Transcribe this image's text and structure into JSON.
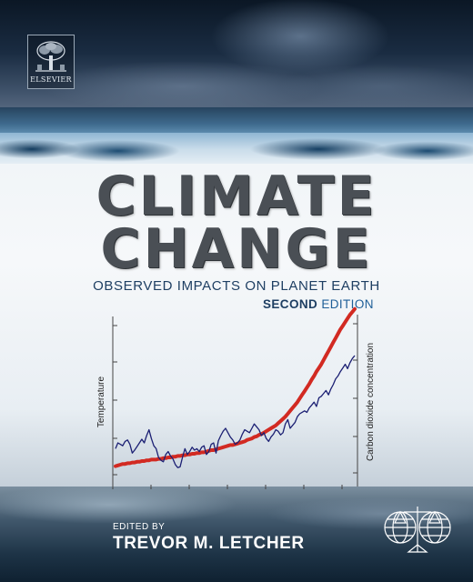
{
  "publisher": {
    "name": "ELSEVIER"
  },
  "cover": {
    "title_line1": "CLIMATE",
    "title_line2": "CHANGE",
    "subtitle": "OBSERVED IMPACTS ON PLANET EARTH",
    "edition_strong": "SECOND",
    "edition_rest": " EDITION"
  },
  "editor": {
    "prefix": "EDITED BY",
    "name": "TREVOR M. LETCHER"
  },
  "chart_data": {
    "type": "line",
    "ylabel_left": "Temperature",
    "ylabel_right": "Carbon dioxide concentration",
    "x": [
      0,
      1,
      2,
      3,
      4,
      5,
      6,
      7,
      8,
      9,
      10,
      11,
      12,
      13,
      14,
      15,
      16,
      17,
      18,
      19,
      20,
      21,
      22,
      23,
      24,
      25,
      26,
      27,
      28,
      29,
      30,
      31,
      32,
      33,
      34,
      35,
      36,
      37,
      38,
      39,
      40,
      41,
      42,
      43,
      44,
      45,
      46,
      47,
      48,
      49,
      50,
      51,
      52,
      53,
      54,
      55,
      56,
      57,
      58,
      59,
      60,
      61,
      62,
      63,
      64,
      65,
      66,
      67,
      68,
      69,
      70,
      71,
      72,
      73,
      74,
      75,
      76,
      77,
      78,
      79,
      80,
      81,
      82,
      83,
      84,
      85,
      86,
      87,
      88,
      89,
      90,
      91,
      92,
      93,
      94,
      95,
      96,
      97,
      98,
      99,
      100
    ],
    "series": [
      {
        "color": "#1b1f73",
        "values": [
          52,
          60,
          58,
          56,
          62,
          64,
          58,
          46,
          50,
          55,
          60,
          65,
          60,
          70,
          78,
          66,
          56,
          52,
          40,
          36,
          34,
          44,
          48,
          42,
          38,
          30,
          26,
          27,
          40,
          52,
          44,
          48,
          54,
          50,
          52,
          48,
          54,
          56,
          44,
          48,
          58,
          60,
          46,
          63,
          70,
          76,
          80,
          74,
          68,
          64,
          58,
          60,
          64,
          72,
          78,
          76,
          74,
          80,
          86,
          82,
          78,
          70,
          74,
          66,
          62,
          68,
          72,
          78,
          76,
          71,
          74,
          86,
          92,
          80,
          84,
          88,
          96,
          100,
          102,
          104,
          102,
          108,
          112,
          116,
          110,
          122,
          124,
          128,
          132,
          126,
          134,
          140,
          148,
          152,
          158,
          163,
          168,
          162,
          170,
          176,
          180
        ]
      },
      {
        "color": "#d22a22",
        "values": [
          28,
          29,
          30,
          31,
          31,
          32,
          32,
          33,
          33,
          34,
          34,
          35,
          35,
          36,
          36,
          37,
          37,
          37,
          38,
          38,
          39,
          39,
          40,
          40,
          41,
          41,
          42,
          42,
          43,
          43,
          44,
          44,
          45,
          45,
          46,
          46,
          47,
          47,
          48,
          49,
          50,
          50,
          51,
          52,
          53,
          54,
          55,
          56,
          57,
          57,
          58,
          59,
          60,
          61,
          62,
          64,
          65,
          66,
          68,
          69,
          71,
          72,
          74,
          76,
          78,
          80,
          82,
          84,
          87,
          90,
          93,
          96,
          100,
          104,
          108,
          112,
          116,
          121,
          126,
          131,
          136,
          141,
          147,
          152,
          158,
          163,
          168,
          174,
          180,
          186,
          192,
          198,
          204,
          210,
          216,
          221,
          226,
          231,
          236,
          240,
          244
        ]
      }
    ]
  },
  "colors": {
    "title": "#4a4f55",
    "subtitle": "#1f3f63",
    "edition_accent": "#1f5f98",
    "temperature_line": "#1b1f73",
    "co2_line": "#d22a22"
  },
  "icons": {
    "publisher_logo": "elsevier-tree-logo",
    "society_emblem": "globe-scales-emblem"
  }
}
